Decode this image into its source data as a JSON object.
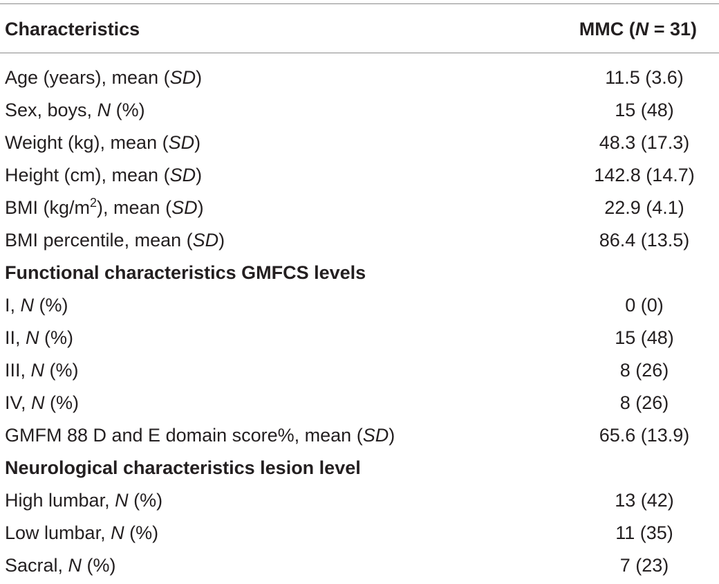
{
  "header": {
    "col1": "Characteristics",
    "col2_prefix": "MMC (",
    "col2_italic": "N",
    "col2_suffix": " = 31)"
  },
  "rows": [
    {
      "parts": [
        "Age (years), mean (",
        "SD",
        ")"
      ],
      "value": "11.5 (3.6)"
    },
    {
      "parts": [
        "Sex, boys, ",
        "N",
        " (%)"
      ],
      "value": "15 (48)"
    },
    {
      "parts": [
        "Weight (kg), mean (",
        "SD",
        ")"
      ],
      "value": "48.3 (17.3)"
    },
    {
      "parts": [
        "Height (cm), mean (",
        "SD",
        ")"
      ],
      "value": "142.8 (14.7)"
    },
    {
      "parts": [
        "BMI (kg/m",
        "2",
        "), mean (",
        "SD",
        ")"
      ],
      "value": "22.9 (4.1)"
    },
    {
      "parts": [
        "BMI percentile, mean (",
        "SD",
        ")"
      ],
      "value": "86.4 (13.5)"
    },
    {
      "section": "Functional characteristics GMFCS levels"
    },
    {
      "parts": [
        "I, ",
        "N",
        " (%)"
      ],
      "value": "0 (0)"
    },
    {
      "parts": [
        "II, ",
        "N",
        " (%)"
      ],
      "value": "15 (48)"
    },
    {
      "parts": [
        "III, ",
        "N",
        " (%)"
      ],
      "value": "8 (26)"
    },
    {
      "parts": [
        "IV, ",
        "N",
        " (%)"
      ],
      "value": "8 (26)"
    },
    {
      "parts": [
        "GMFM 88 D and E domain score%, mean (",
        "SD",
        ")"
      ],
      "value": "65.6 (13.9)"
    },
    {
      "section": "Neurological characteristics lesion level"
    },
    {
      "parts": [
        "High lumbar, ",
        "N",
        " (%)"
      ],
      "value": "13 (42)"
    },
    {
      "parts": [
        "Low lumbar, ",
        "N",
        " (%)"
      ],
      "value": "11 (35)"
    },
    {
      "parts": [
        "Sacral, ",
        "N",
        " (%)"
      ],
      "value": "7 (23)"
    }
  ]
}
